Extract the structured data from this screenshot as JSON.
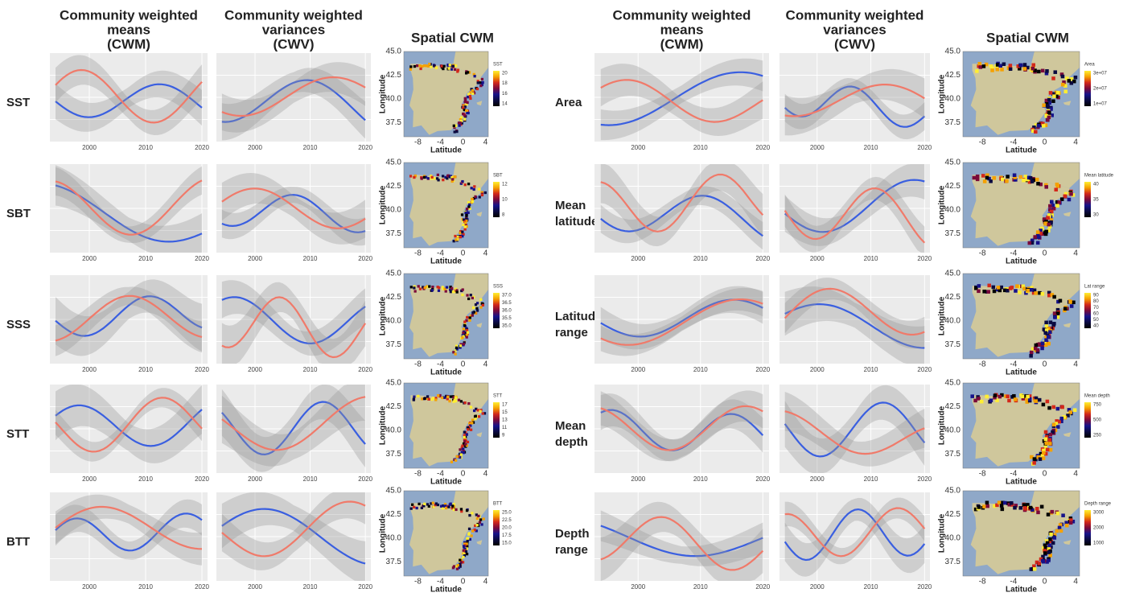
{
  "years": [
    "2000",
    "2010",
    "2020"
  ],
  "map_x_ticks": [
    "-8",
    "-4",
    "0",
    "4"
  ],
  "map_y_ticks": [
    "45.0",
    "42.5",
    "40.0",
    "37.5"
  ],
  "map_x_title": "Latitude",
  "map_y_title": "Longitude",
  "left": {
    "headers": [
      [
        "Community weighted",
        "means",
        "(CWM)"
      ],
      [
        "Community weighted",
        "variances",
        "(CWV)"
      ],
      [
        "Spatial CWM"
      ]
    ],
    "rows": [
      {
        "label": [
          "SST"
        ],
        "legend_title": "SST",
        "legend": [
          "20",
          "18",
          "16",
          "14"
        ]
      },
      {
        "label": [
          "SBT"
        ],
        "legend_title": "SBT",
        "legend": [
          "12",
          "10",
          "8"
        ]
      },
      {
        "label": [
          "SSS"
        ],
        "legend_title": "SSS",
        "legend": [
          "37.0",
          "36.5",
          "36.0",
          "35.5",
          "35.0"
        ]
      },
      {
        "label": [
          "STT"
        ],
        "legend_title": "STT",
        "legend": [
          "17",
          "15",
          "13",
          "11",
          "9"
        ]
      },
      {
        "label": [
          "BTT"
        ],
        "legend_title": "BTT",
        "legend": [
          "25.0",
          "22.5",
          "20.0",
          "17.5",
          "15.0"
        ]
      }
    ]
  },
  "right": {
    "headers": [
      [
        "Community weighted",
        "means",
        "(CWM)"
      ],
      [
        "Community weighted",
        "variances",
        "(CWV)"
      ],
      [
        "Spatial CWM"
      ]
    ],
    "rows": [
      {
        "label": [
          "Area"
        ],
        "legend_title": "Area",
        "legend": [
          "3e+07",
          "2e+07",
          "1e+07"
        ]
      },
      {
        "label": [
          "Mean",
          "latitude"
        ],
        "legend_title": "Mean latitude",
        "legend": [
          "40",
          "35",
          "30"
        ]
      },
      {
        "label": [
          "Latitude",
          "range"
        ],
        "legend_title": "Lat range",
        "legend": [
          "90",
          "80",
          "70",
          "60",
          "50",
          "40"
        ]
      },
      {
        "label": [
          "Mean",
          "depth"
        ],
        "legend_title": "Mean depth",
        "legend": [
          "750",
          "500",
          "250"
        ]
      },
      {
        "label": [
          "Depth",
          "range"
        ],
        "legend_title": "Depth range",
        "legend": [
          "3000",
          "2000",
          "1000"
        ]
      }
    ]
  }
}
